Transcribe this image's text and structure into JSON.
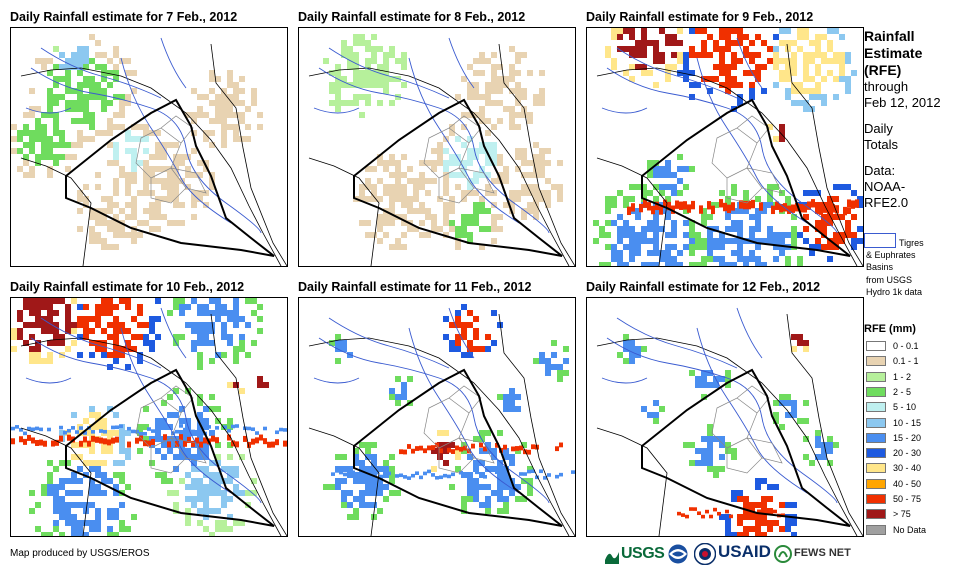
{
  "panels": [
    {
      "title": "Daily Rainfall estimate for 7 Feb., 2012"
    },
    {
      "title": "Daily Rainfall estimate for 8 Feb., 2012"
    },
    {
      "title": "Daily Rainfall estimate for 9 Feb., 2012"
    },
    {
      "title": "Daily Rainfall estimate for 10 Feb., 2012"
    },
    {
      "title": "Daily Rainfall estimate for 11 Feb., 2012"
    },
    {
      "title": "Daily Rainfall estimate for 12 Feb., 2012"
    }
  ],
  "side": {
    "line1": "Rainfall",
    "line2": "Estimate",
    "line3": "(RFE)",
    "line4": "through",
    "line5": "Feb 12, 2012",
    "daily1": "Daily",
    "daily2": "Totals",
    "data1": "Data:",
    "data2": "NOAA-",
    "data3": "RFE2.0",
    "basin1": "Tigres",
    "basin2": "& Euphrates",
    "basin3": "Basins",
    "basin4": "from USGS",
    "basin5": "Hydro 1k data"
  },
  "legend": {
    "title": "RFE (mm)",
    "items": [
      {
        "label": "0 - 0.1",
        "color": "#ffffff"
      },
      {
        "label": "0.1 - 1",
        "color": "#e8d3b2"
      },
      {
        "label": "1 - 2",
        "color": "#b6f09b"
      },
      {
        "label": "2 - 5",
        "color": "#6fdc5e"
      },
      {
        "label": "5 - 10",
        "color": "#bff0f0"
      },
      {
        "label": "10 - 15",
        "color": "#8cc8f0"
      },
      {
        "label": "15 - 20",
        "color": "#4a8ef0"
      },
      {
        "label": "20 - 30",
        "color": "#1e5ae0"
      },
      {
        "label": "30 - 40",
        "color": "#ffe68a"
      },
      {
        "label": "40 - 50",
        "color": "#ffa500"
      },
      {
        "label": "50 - 75",
        "color": "#f03000"
      },
      {
        "label": "> 75",
        "color": "#a01818"
      },
      {
        "label": "No Data",
        "color": "#a0a0a0"
      }
    ]
  },
  "footer": {
    "credit": "Map produced by USGS/EROS"
  },
  "logos": {
    "usgs": "USGS",
    "usaid": "USAID",
    "fews": "FEWS NET"
  }
}
